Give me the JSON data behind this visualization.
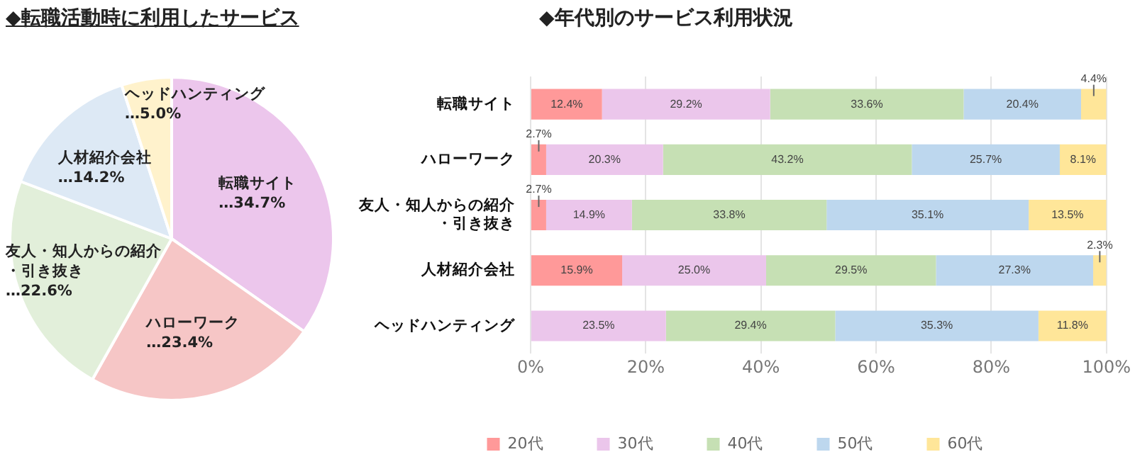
{
  "chart_data": [
    {
      "type": "pie",
      "title": "◆転職活動時に利用したサービス",
      "categories": [
        "転職サイト",
        "ハローワーク",
        "友人・知人からの紹介・引き抜き",
        "人材紹介会社",
        "ヘッドハンティング"
      ],
      "values": [
        34.7,
        23.4,
        22.6,
        14.2,
        5.0
      ],
      "value_labels": [
        "…34.7%",
        "…23.4%",
        "…22.6%",
        "…14.2%",
        "…5.0%"
      ],
      "colors": [
        "#ecc6ec",
        "#f6c6c6",
        "#e2efda",
        "#dde9f5",
        "#fff2cc"
      ]
    },
    {
      "type": "bar",
      "title": "◆年代別のサービス利用状況",
      "orientation": "horizontal",
      "stacked": true,
      "categories": [
        "転職サイト",
        "ハローワーク",
        "友人・知人からの紹介・引き抜き",
        "人材紹介会社",
        "ヘッドハンティング"
      ],
      "series": [
        {
          "name": "20代",
          "color": "#ff9999",
          "values": [
            12.4,
            2.7,
            2.7,
            15.9,
            null
          ],
          "value_labels": [
            "12.4%",
            "2.7%",
            "2.7%",
            "15.9%",
            null
          ]
        },
        {
          "name": "30代",
          "color": "#ebc6eb",
          "values": [
            29.2,
            20.3,
            14.9,
            25.0,
            23.5
          ],
          "value_labels": [
            "29.2%",
            "20.3%",
            "14.9%",
            "25.0%",
            "23.5%"
          ]
        },
        {
          "name": "40代",
          "color": "#c6e0b4",
          "values": [
            33.6,
            43.2,
            33.8,
            29.5,
            29.4
          ],
          "value_labels": [
            "33.6%",
            "43.2%",
            "33.8%",
            "29.5%",
            "29.4%"
          ]
        },
        {
          "name": "50代",
          "color": "#bdd7ee",
          "values": [
            20.4,
            25.7,
            35.1,
            27.3,
            35.3
          ],
          "value_labels": [
            "20.4%",
            "25.7%",
            "35.1%",
            "27.3%",
            "35.3%"
          ]
        },
        {
          "name": "60代",
          "color": "#ffe699",
          "values": [
            4.4,
            8.1,
            13.5,
            2.3,
            11.8
          ],
          "value_labels": [
            "4.4%",
            "8.1%",
            "13.5%",
            "2.3%",
            "11.8%"
          ]
        }
      ],
      "xlim": [
        0,
        100
      ],
      "xticks": [
        {
          "value": 0,
          "label": "0%"
        },
        {
          "value": 20,
          "label": "20%"
        },
        {
          "value": 40,
          "label": "40%"
        },
        {
          "value": 60,
          "label": "60%"
        },
        {
          "value": 80,
          "label": "80%"
        },
        {
          "value": 100,
          "label": "100%"
        }
      ],
      "grid": "x",
      "legend": "bottom"
    }
  ]
}
